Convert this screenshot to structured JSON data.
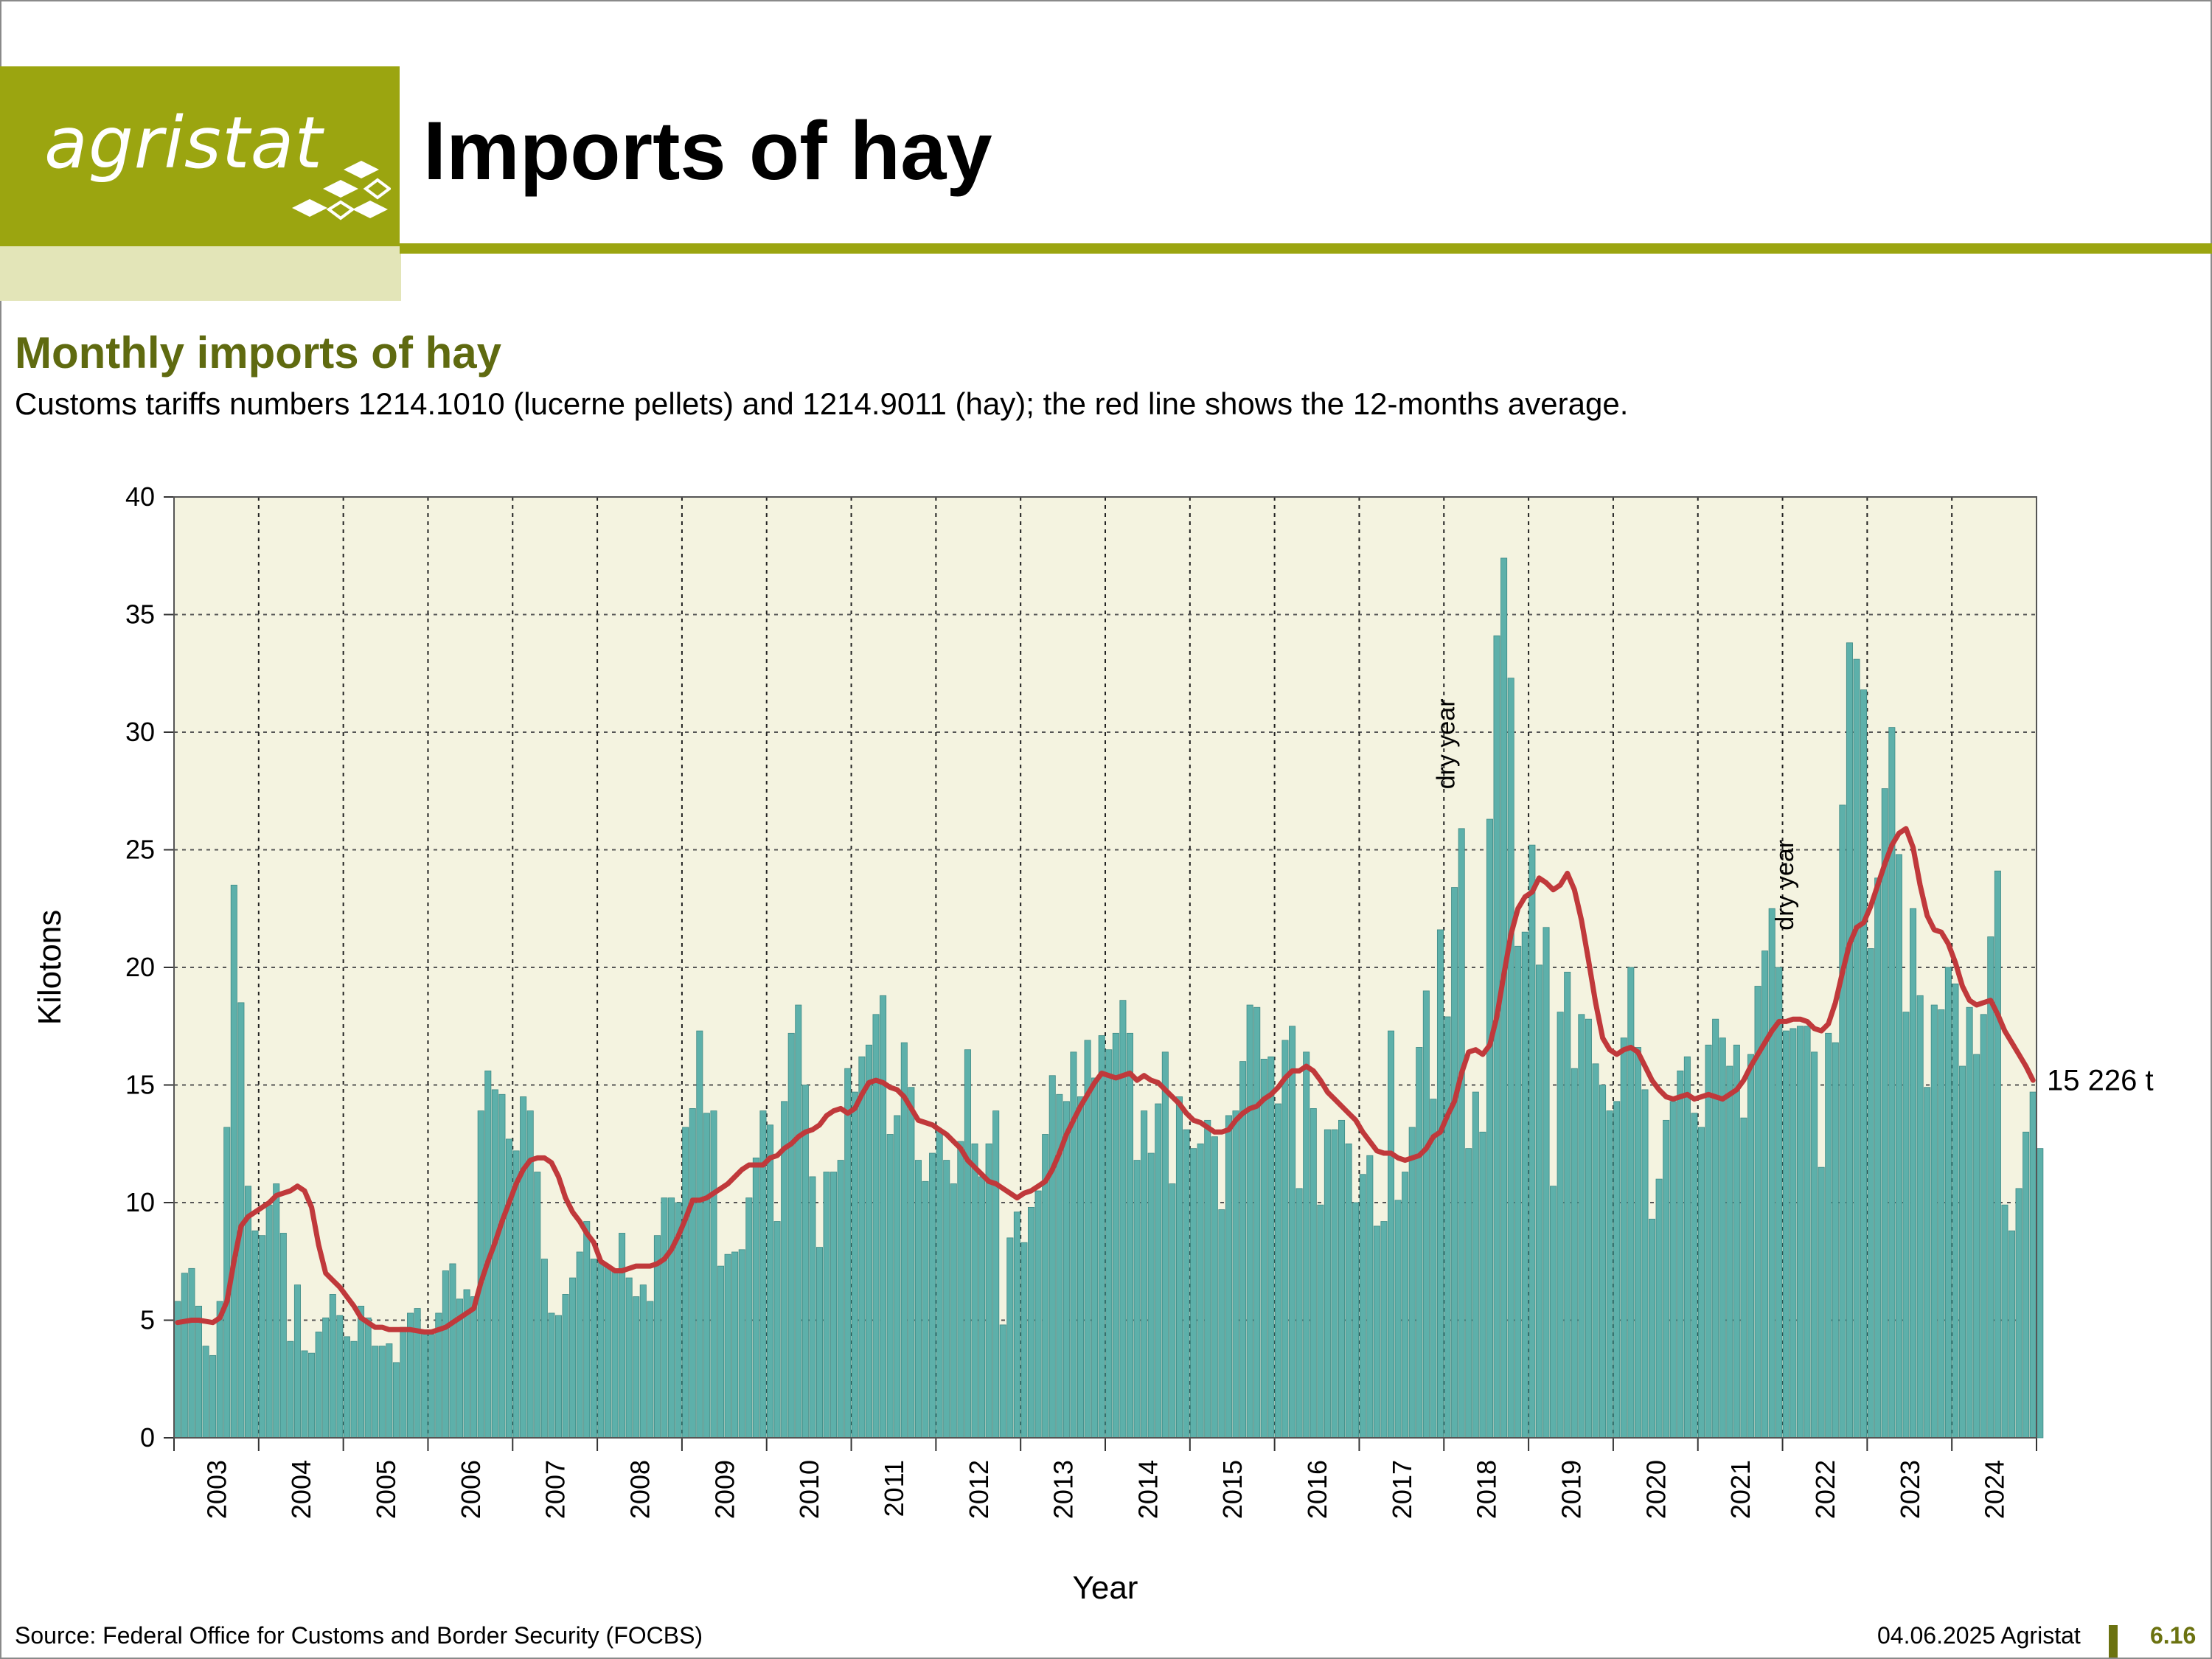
{
  "header": {
    "logo_text": "agristat",
    "title": "Imports of hay"
  },
  "subtitle": "Monthly imports of hay",
  "description": "Customs tariffs numbers 1214.1010 (lucerne pellets) and 1214.9011 (hay); the red line shows the 12-months average.",
  "colors": {
    "brand": "#9ba510",
    "brand_light": "#e3e5b8",
    "subtitle": "#5f6a10",
    "bar": "#5db0aa",
    "average_line": "#c0393b",
    "plot_background": "#f4f3e0"
  },
  "chart_data": {
    "type": "bar",
    "xlabel": "Year",
    "ylabel": "Kilotons",
    "ylim": [
      0,
      40
    ],
    "yticks": [
      0,
      5,
      10,
      15,
      20,
      25,
      30,
      35,
      40
    ],
    "years": [
      "2003",
      "2004",
      "2005",
      "2006",
      "2007",
      "2008",
      "2009",
      "2010",
      "2011",
      "2012",
      "2013",
      "2014",
      "2015",
      "2016",
      "2017",
      "2018",
      "2019",
      "2020",
      "2021",
      "2022",
      "2023",
      "2024"
    ],
    "grid": true,
    "series": [
      {
        "kind": "bar",
        "values": [
          5.8,
          7.0,
          7.2,
          5.6,
          3.9,
          3.5,
          5.8,
          13.2,
          23.5,
          18.5,
          10.7,
          8.8,
          8.6,
          9.9,
          10.8,
          8.7,
          4.1,
          6.5,
          3.7,
          3.6,
          4.5,
          5.1,
          6.1,
          5.2,
          4.3,
          4.1,
          5.6,
          5.1,
          3.9,
          3.9,
          4.0,
          3.2,
          4.7,
          5.3,
          5.5,
          4.5,
          4.4,
          5.3,
          7.1,
          7.4,
          5.9,
          6.3,
          6.0,
          13.9,
          15.6,
          14.8,
          14.6,
          12.7,
          12.2,
          14.5,
          13.9,
          11.3,
          7.6,
          5.3,
          5.2,
          6.1,
          6.8,
          7.9,
          9.2,
          7.6,
          7.5,
          7.3,
          7.1,
          8.7,
          6.8,
          6.0,
          6.5,
          5.8,
          8.6,
          10.2,
          10.2,
          10.0,
          13.2,
          14.0,
          17.3,
          13.8,
          13.9,
          7.3,
          7.8,
          7.9,
          8.0,
          10.2,
          11.9,
          13.9,
          13.3,
          9.2,
          14.3,
          17.2,
          18.4,
          15.0,
          11.1,
          8.1,
          11.3,
          11.3,
          11.8,
          15.7,
          14.7,
          16.2,
          16.7,
          18.0,
          18.8,
          12.9,
          13.7,
          16.8,
          14.9,
          11.8,
          10.9,
          12.1,
          13.1,
          11.8,
          10.8,
          12.6,
          16.5,
          12.5,
          11.1,
          12.5,
          13.9,
          4.8,
          8.5,
          9.6,
          8.3,
          9.8,
          10.5,
          12.9,
          15.4,
          14.6,
          14.3,
          16.4,
          14.5,
          16.9,
          15.3,
          17.1,
          16.5,
          17.2,
          18.6,
          17.2,
          11.8,
          13.9,
          12.1,
          14.2,
          16.4,
          10.8,
          14.5,
          13.1,
          12.3,
          12.5,
          13.5,
          12.8,
          9.7,
          13.7,
          13.9,
          16.0,
          18.4,
          18.3,
          16.1,
          16.2,
          14.2,
          16.9,
          17.5,
          10.6,
          16.4,
          14.0,
          9.9,
          13.1,
          13.1,
          13.5,
          12.5,
          10.0,
          11.2,
          12.0,
          9.0,
          9.2,
          17.3,
          10.1,
          11.3,
          13.2,
          16.6,
          19.0,
          14.4,
          21.6,
          17.9,
          23.4,
          25.9,
          12.3,
          14.7,
          13.0,
          26.3,
          34.1,
          37.4,
          32.3,
          20.9,
          21.5,
          25.2,
          20.1,
          21.7,
          10.7,
          18.1,
          19.8,
          15.7,
          18.0,
          17.8,
          15.9,
          15.0,
          13.9,
          14.3,
          17.0,
          20.0,
          16.6,
          14.8,
          9.3,
          11.0,
          13.5,
          14.3,
          15.6,
          16.2,
          13.8,
          13.2,
          16.7,
          17.8,
          17.0,
          15.8,
          16.7,
          13.6,
          16.3,
          19.2,
          20.7,
          22.5,
          20.0,
          17.3,
          17.4,
          17.5,
          17.5,
          16.4,
          11.5,
          17.2,
          16.8,
          26.9,
          33.8,
          33.1,
          31.8,
          20.8,
          23.8,
          27.6,
          30.2,
          24.8,
          18.1,
          22.5,
          18.8,
          14.9,
          18.4,
          18.2,
          20.0,
          19.3,
          15.8,
          18.3,
          16.3,
          18.0,
          21.3,
          24.1,
          9.9,
          8.8,
          10.6,
          13.0,
          14.7,
          12.3
        ]
      },
      {
        "kind": "line",
        "values": [
          4.9,
          4.95,
          5.0,
          5.0,
          4.95,
          4.9,
          5.1,
          5.8,
          7.5,
          9.0,
          9.4,
          9.6,
          9.8,
          10.0,
          10.3,
          10.4,
          10.5,
          10.7,
          10.5,
          9.8,
          8.2,
          7.0,
          6.7,
          6.4,
          6.0,
          5.6,
          5.1,
          4.9,
          4.7,
          4.7,
          4.6,
          4.6,
          4.6,
          4.6,
          4.55,
          4.5,
          4.5,
          4.6,
          4.7,
          4.9,
          5.1,
          5.3,
          5.5,
          6.6,
          7.5,
          8.3,
          9.2,
          10.0,
          10.8,
          11.4,
          11.8,
          11.9,
          11.9,
          11.7,
          11.1,
          10.2,
          9.6,
          9.2,
          8.7,
          8.3,
          7.5,
          7.3,
          7.1,
          7.1,
          7.2,
          7.3,
          7.3,
          7.3,
          7.4,
          7.6,
          8.0,
          8.6,
          9.3,
          10.1,
          10.1,
          10.2,
          10.4,
          10.6,
          10.8,
          11.1,
          11.4,
          11.6,
          11.6,
          11.6,
          11.9,
          12.0,
          12.3,
          12.5,
          12.8,
          13.0,
          13.1,
          13.3,
          13.7,
          13.9,
          14.0,
          13.8,
          14.0,
          14.6,
          15.1,
          15.2,
          15.1,
          14.9,
          14.8,
          14.5,
          14.0,
          13.5,
          13.4,
          13.3,
          13.1,
          12.9,
          12.6,
          12.3,
          11.8,
          11.5,
          11.2,
          10.9,
          10.8,
          10.6,
          10.4,
          10.2,
          10.4,
          10.5,
          10.7,
          10.9,
          11.4,
          12.1,
          12.9,
          13.5,
          14.1,
          14.6,
          15.1,
          15.5,
          15.4,
          15.3,
          15.4,
          15.5,
          15.2,
          15.4,
          15.2,
          15.1,
          14.8,
          14.5,
          14.2,
          13.8,
          13.5,
          13.4,
          13.2,
          13.0,
          13.0,
          13.1,
          13.5,
          13.8,
          14.0,
          14.1,
          14.4,
          14.6,
          14.9,
          15.3,
          15.6,
          15.6,
          15.8,
          15.6,
          15.2,
          14.7,
          14.4,
          14.1,
          13.8,
          13.5,
          13.0,
          12.6,
          12.2,
          12.1,
          12.1,
          11.9,
          11.8,
          11.9,
          12.0,
          12.3,
          12.8,
          13.0,
          13.7,
          14.3,
          15.5,
          16.4,
          16.5,
          16.3,
          16.7,
          17.9,
          19.7,
          21.4,
          22.5,
          23.0,
          23.2,
          23.8,
          23.6,
          23.3,
          23.5,
          24.0,
          23.3,
          22.0,
          20.3,
          18.5,
          17.0,
          16.5,
          16.3,
          16.5,
          16.6,
          16.4,
          15.8,
          15.2,
          14.8,
          14.5,
          14.4,
          14.5,
          14.6,
          14.4,
          14.5,
          14.6,
          14.5,
          14.4,
          14.6,
          14.8,
          15.2,
          15.8,
          16.3,
          16.8,
          17.3,
          17.7,
          17.7,
          17.8,
          17.8,
          17.7,
          17.4,
          17.3,
          17.6,
          18.5,
          19.8,
          21.0,
          21.7,
          21.9,
          22.6,
          23.5,
          24.4,
          25.2,
          25.7,
          25.9,
          25.1,
          23.5,
          22.2,
          21.6,
          21.5,
          21.0,
          20.2,
          19.2,
          18.6,
          18.4,
          18.5,
          18.6,
          18.0,
          17.3,
          16.8,
          16.3,
          15.8,
          15.2
        ]
      }
    ],
    "annotations": [
      {
        "text": "dry year",
        "year": "2018"
      },
      {
        "text": "dry year",
        "year": "2022"
      },
      {
        "text": "15 226 t",
        "value": 15.226
      }
    ]
  },
  "footer": {
    "source": "Source: Federal Office for Customs and Border Security (FOCBS)",
    "date": "04.06.2025 Agristat",
    "page": "6.16"
  }
}
